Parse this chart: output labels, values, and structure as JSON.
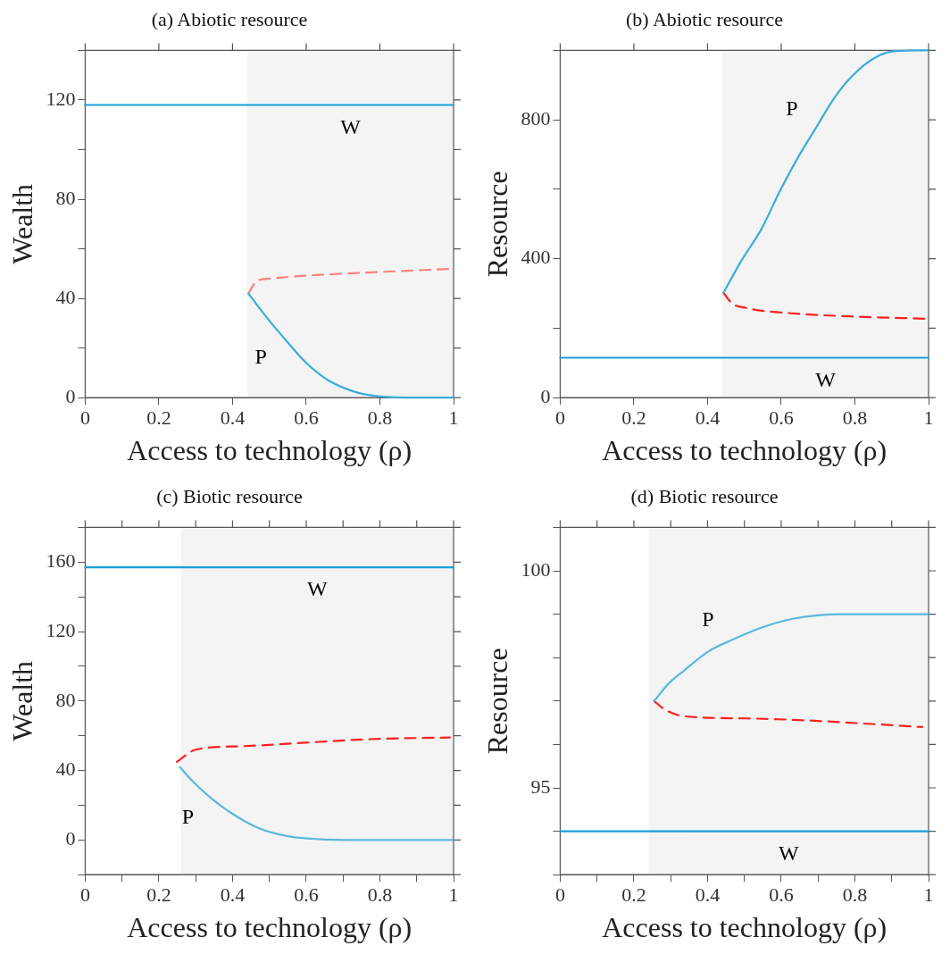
{
  "chart_data": [
    {
      "type": "line",
      "title": "(a) Abiotic resource",
      "xlabel": "Access to technology (ρ)",
      "ylabel": "Wealth",
      "xlim": [
        0,
        1
      ],
      "xticks": [
        0,
        0.2,
        0.4,
        0.6,
        0.8,
        1
      ],
      "ylim": [
        0,
        140
      ],
      "yticks": [
        0,
        {
          "value": 20,
          "label": null
        },
        40,
        {
          "value": 60,
          "label": null
        },
        80,
        {
          "value": 100,
          "label": null
        },
        120,
        {
          "value": 140,
          "label": null
        }
      ],
      "bands": [
        {
          "axis": "x",
          "from": 0.44,
          "to": 1,
          "color": "#f4f4f4"
        }
      ],
      "series": [
        {
          "name": "W",
          "color": "#1a9fd6",
          "x": [
            0,
            0.44,
            1
          ],
          "values": [
            118,
            118,
            118
          ]
        },
        {
          "name": "P",
          "color": "#3aaed8",
          "x": [
            0.443,
            0.5,
            0.54,
            0.6,
            0.66,
            0.74,
            0.8,
            0.9,
            1
          ],
          "values": [
            42,
            31,
            24,
            14,
            7,
            2,
            0.5,
            0,
            0
          ]
        },
        {
          "color": "#ff8080",
          "line_style": "dashed",
          "x": [
            0.443,
            0.466,
            0.5,
            0.578,
            0.7,
            0.85,
            1
          ],
          "values": [
            42,
            47,
            48,
            49,
            50,
            51,
            52
          ]
        }
      ]
    },
    {
      "type": "line",
      "title": "(b) Abiotic resource",
      "xlabel": "Access to technology (ρ)",
      "ylabel": "Resource",
      "xlim": [
        0,
        1
      ],
      "xticks": [
        0,
        0.2,
        0.4,
        0.6,
        0.8,
        1
      ],
      "ylim": [
        0,
        1000
      ],
      "yticks": [
        0,
        {
          "value": 200,
          "label": null
        },
        400,
        {
          "value": 600,
          "label": null
        },
        800,
        {
          "value": 1000,
          "label": null
        }
      ],
      "bands": [
        {
          "axis": "x",
          "from": 0.44,
          "to": 1,
          "color": "#f4f4f4"
        }
      ],
      "series": [
        {
          "name": "W",
          "color": "#1a9fd6",
          "x": [
            0,
            0.44,
            1
          ],
          "values": [
            115,
            115,
            115
          ]
        },
        {
          "name": "P",
          "color": "#3aaed8",
          "x": [
            0.4435,
            0.49,
            0.547,
            0.595,
            0.643,
            0.692,
            0.748,
            0.797,
            0.853,
            0.91,
            1
          ],
          "values": [
            302,
            391,
            487,
            592,
            687,
            773,
            869,
            931,
            978,
            998,
            1000
          ]
        },
        {
          "color": "#ff2020",
          "line_style": "dashed",
          "x": [
            0.4435,
            0.466,
            0.506,
            0.627,
            0.789,
            1
          ],
          "values": [
            302,
            272,
            258,
            243,
            234,
            227
          ]
        }
      ]
    },
    {
      "type": "line",
      "title": "(c) Biotic resource",
      "xlabel": "Access to technology (ρ)",
      "ylabel": "Wealth",
      "xlim": [
        0,
        1
      ],
      "xticks": [
        0,
        {
          "value": 0.1,
          "label": null
        },
        0.2,
        {
          "value": 0.3,
          "label": null
        },
        0.4,
        {
          "value": 0.5,
          "label": null
        },
        0.6,
        {
          "value": 0.7,
          "label": null
        },
        0.8,
        {
          "value": 0.9,
          "label": null
        },
        1
      ],
      "ylim": [
        -20,
        180
      ],
      "yticks": [
        {
          "value": -20,
          "label": null
        },
        0,
        {
          "value": 20,
          "label": null
        },
        40,
        {
          "value": 60,
          "label": null
        },
        80,
        {
          "value": 100,
          "label": null
        },
        120,
        {
          "value": 140,
          "label": null
        },
        160,
        {
          "value": 180,
          "label": null
        }
      ],
      "bands": [
        {
          "axis": "x",
          "from": 0.26,
          "to": 1,
          "color": "#f4f4f4"
        }
      ],
      "series": [
        {
          "name": "W",
          "color": "#1a9fd6",
          "x": [
            0,
            0.26,
            1
          ],
          "values": [
            157,
            157,
            157
          ]
        },
        {
          "name": "P",
          "color": "#5ab8dc",
          "x": [
            0.257,
            0.291,
            0.342,
            0.393,
            0.469,
            0.554,
            0.639,
            0.767,
            1
          ],
          "values": [
            42,
            34,
            24,
            16,
            7,
            2,
            0.4,
            0,
            0
          ]
        },
        {
          "color": "#ff2020",
          "line_style": "dashed",
          "x": [
            0.249,
            0.3,
            0.427,
            0.597,
            0.767,
            0.99
          ],
          "values": [
            45,
            52,
            54,
            56,
            58,
            59
          ]
        }
      ]
    },
    {
      "type": "line",
      "title": "(d) Biotic resource",
      "xlabel": "Access to technology (ρ)",
      "ylabel": "Resource",
      "xlim": [
        0,
        1
      ],
      "xticks": [
        0,
        {
          "value": 0.1,
          "label": null
        },
        0.2,
        {
          "value": 0.3,
          "label": null
        },
        0.4,
        {
          "value": 0.5,
          "label": null
        },
        0.6,
        {
          "value": 0.7,
          "label": null
        },
        0.8,
        {
          "value": 0.9,
          "label": null
        },
        1
      ],
      "ylim": [
        93,
        101
      ],
      "yticks": [
        {
          "value": 93,
          "label": null
        },
        {
          "value": 94,
          "label": null
        },
        95,
        {
          "value": 96,
          "label": null
        },
        {
          "value": 97,
          "label": null
        },
        {
          "value": 98,
          "label": null
        },
        {
          "value": 99,
          "label": null
        },
        100,
        {
          "value": 101,
          "label": null
        }
      ],
      "bands": [
        {
          "axis": "x",
          "from": 0.24,
          "to": 1,
          "color": "#f4f4f4"
        }
      ],
      "series": [
        {
          "name": "W",
          "color": "#1a9fd6",
          "x": [
            0,
            0.24,
            1
          ],
          "values": [
            94,
            94,
            94
          ]
        },
        {
          "name": "P",
          "color": "#5ab8dc",
          "x": [
            0.255,
            0.294,
            0.336,
            0.404,
            0.464,
            0.549,
            0.634,
            0.762,
            1
          ],
          "values": [
            97,
            97.4,
            97.7,
            98.15,
            98.4,
            98.7,
            98.9,
            99,
            99
          ]
        },
        {
          "color": "#ff2020",
          "line_style": "dashed",
          "x": [
            0.255,
            0.285,
            0.336,
            0.506,
            0.677,
            0.983
          ],
          "values": [
            97,
            96.8,
            96.65,
            96.6,
            96.55,
            96.4
          ]
        }
      ]
    }
  ]
}
